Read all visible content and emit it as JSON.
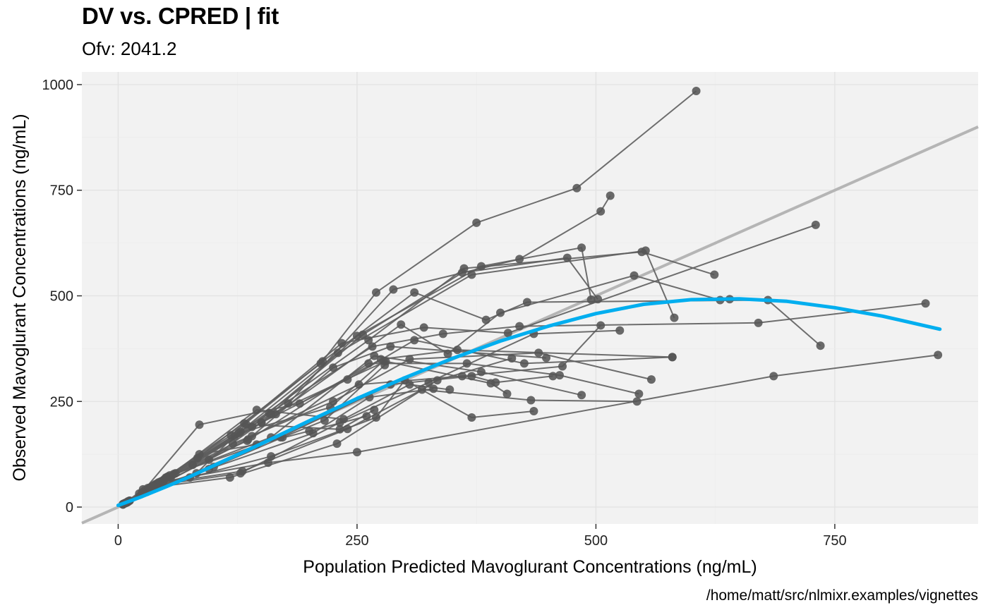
{
  "title": "DV vs. CPRED | fit",
  "subtitle": "Ofv: 2041.2",
  "caption": "/home/matt/src/nlmixr.examples/vignettes",
  "chart_data": {
    "type": "scatter",
    "title": "DV vs. CPRED | fit",
    "subtitle": "Ofv: 2041.2",
    "xlabel": "Population Predicted Mavoglurant Concentrations (ng/mL)",
    "ylabel": "Observed Mavoglurant Concentrations (ng/mL)",
    "xlim": [
      -38,
      900
    ],
    "ylim": [
      -40,
      1030
    ],
    "x_ticks": [
      0,
      250,
      500,
      750
    ],
    "y_ticks": [
      0,
      250,
      500,
      750,
      1000
    ],
    "grid": true,
    "colors": {
      "panel": "#f2f2f2",
      "grid": "#e2e2e2",
      "points": "#555555",
      "lines": "#5e5e5e",
      "smooth": "#00aeef",
      "identity": "#b5b5b5"
    },
    "identity_line": {
      "slope": 1,
      "intercept": 0
    },
    "smooth": {
      "x": [
        0,
        25,
        50,
        75,
        100,
        150,
        200,
        250,
        300,
        350,
        400,
        450,
        500,
        550,
        600,
        650,
        700,
        750,
        800,
        860
      ],
      "y": [
        4,
        25,
        48,
        72,
        98,
        150,
        204,
        257,
        306,
        352,
        393,
        428,
        458,
        480,
        491,
        493,
        487,
        472,
        452,
        421
      ]
    },
    "series": [
      {
        "x": [
          6,
          26,
          83,
          212,
          270,
          375,
          480,
          605
        ],
        "y": [
          8,
          42,
          116,
          340,
          508,
          673,
          755,
          985
        ]
      },
      {
        "x": [
          5,
          30,
          95,
          178,
          288,
          420,
          505,
          515
        ],
        "y": [
          6,
          36,
          112,
          245,
          515,
          587,
          700,
          737
        ]
      },
      {
        "x": [
          8,
          48,
          140,
          256,
          360,
          470,
          502
        ],
        "y": [
          10,
          65,
          190,
          408,
          555,
          590,
          492
        ]
      },
      {
        "x": [
          10,
          55,
          150,
          250,
          380,
          485,
          495
        ],
        "y": [
          12,
          70,
          200,
          405,
          570,
          614,
          491
        ]
      },
      {
        "x": [
          7,
          40,
          122,
          230,
          370,
          552,
          582
        ],
        "y": [
          9,
          55,
          168,
          365,
          550,
          607,
          448
        ]
      },
      {
        "x": [
          9,
          45,
          128,
          262,
          362,
          548,
          624
        ],
        "y": [
          11,
          60,
          178,
          395,
          565,
          604,
          550
        ]
      },
      {
        "x": [
          12,
          60,
          165,
          296,
          345,
          400,
          540,
          630,
          640
        ],
        "y": [
          15,
          80,
          220,
          432,
          363,
          460,
          548,
          490,
          492
        ]
      },
      {
        "x": [
          6,
          35,
          118,
          214,
          310,
          385,
          428,
          680,
          735
        ],
        "y": [
          8,
          48,
          170,
          345,
          508,
          443,
          485,
          490,
          382
        ]
      },
      {
        "x": [
          8,
          42,
          132,
          234,
          320,
          408,
          730
        ],
        "y": [
          10,
          58,
          198,
          388,
          425,
          412,
          668
        ]
      },
      {
        "x": [
          11,
          52,
          158,
          266,
          340,
          420,
          670,
          845
        ],
        "y": [
          14,
          72,
          222,
          380,
          410,
          428,
          436,
          482
        ]
      },
      {
        "x": [
          6,
          25,
          85,
          190,
          275,
          355,
          580
        ],
        "y": [
          8,
          35,
          195,
          245,
          350,
          372,
          355
        ]
      },
      {
        "x": [
          10,
          50,
          150,
          240,
          310,
          425,
          580
        ],
        "y": [
          12,
          70,
          200,
          302,
          395,
          340,
          355
        ]
      },
      {
        "x": [
          7,
          38,
          120,
          225,
          305,
          440,
          558
        ],
        "y": [
          9,
          52,
          150,
          250,
          350,
          365,
          302
        ]
      },
      {
        "x": [
          9,
          46,
          140,
          252,
          360,
          465,
          505
        ],
        "y": [
          11,
          62,
          168,
          290,
          310,
          333,
          430
        ]
      },
      {
        "x": [
          8,
          44,
          135,
          262,
          365,
          462,
          545
        ],
        "y": [
          10,
          60,
          157,
          340,
          340,
          312,
          268
        ]
      },
      {
        "x": [
          10,
          52,
          160,
          268,
          380,
          485
        ],
        "y": [
          12,
          72,
          165,
          358,
          320,
          265
        ]
      },
      {
        "x": [
          6,
          36,
          128,
          232,
          325,
          435,
          525
        ],
        "y": [
          8,
          50,
          80,
          200,
          295,
          410,
          418
        ]
      },
      {
        "x": [
          11,
          54,
          160,
          280,
          390,
          407
        ],
        "y": [
          14,
          75,
          220,
          345,
          293,
          268
        ]
      },
      {
        "x": [
          7,
          39,
          130,
          240,
          318,
          432,
          543
        ],
        "y": [
          9,
          54,
          85,
          185,
          278,
          253,
          250
        ]
      },
      {
        "x": [
          5,
          22,
          75,
          160,
          270,
          300,
          370,
          435
        ],
        "y": [
          6,
          32,
          70,
          120,
          212,
          300,
          212,
          227
        ]
      },
      {
        "x": [
          12,
          58,
          170,
          285,
          370,
          395,
          455
        ],
        "y": [
          15,
          78,
          165,
          290,
          310,
          295,
          310
        ]
      },
      {
        "x": [
          6,
          31,
          117,
          229,
          334,
          412
        ],
        "y": [
          8,
          45,
          70,
          150,
          300,
          352
        ]
      },
      {
        "x": [
          9,
          47,
          157,
          250,
          686,
          858
        ],
        "y": [
          11,
          60,
          105,
          130,
          310,
          360
        ]
      },
      {
        "x": [
          5,
          28,
          95,
          204,
          263,
          330
        ],
        "y": [
          7,
          40,
          90,
          175,
          260,
          280
        ]
      },
      {
        "x": [
          7,
          40,
          145,
          236,
          305,
          347
        ],
        "y": [
          9,
          50,
          230,
          208,
          290,
          278
        ]
      },
      {
        "x": [
          8,
          43,
          136,
          225,
          285,
          448
        ],
        "y": [
          10,
          52,
          160,
          330,
          380,
          353
        ]
      },
      {
        "x": [
          5,
          26,
          100,
          172,
          216,
          279
        ],
        "y": [
          7,
          34,
          95,
          165,
          205,
          336
        ]
      },
      {
        "x": [
          10,
          49,
          85,
          145,
          200,
          260
        ],
        "y": [
          13,
          67,
          125,
          148,
          180,
          215
        ]
      },
      {
        "x": [
          6,
          33,
          78,
          126,
          222,
          278
        ],
        "y": [
          8,
          46,
          100,
          175,
          236,
          346
        ]
      },
      {
        "x": [
          7,
          37,
          82,
          134,
          232,
          268
        ],
        "y": [
          9,
          48,
          80,
          196,
          184,
          230
        ]
      }
    ]
  }
}
